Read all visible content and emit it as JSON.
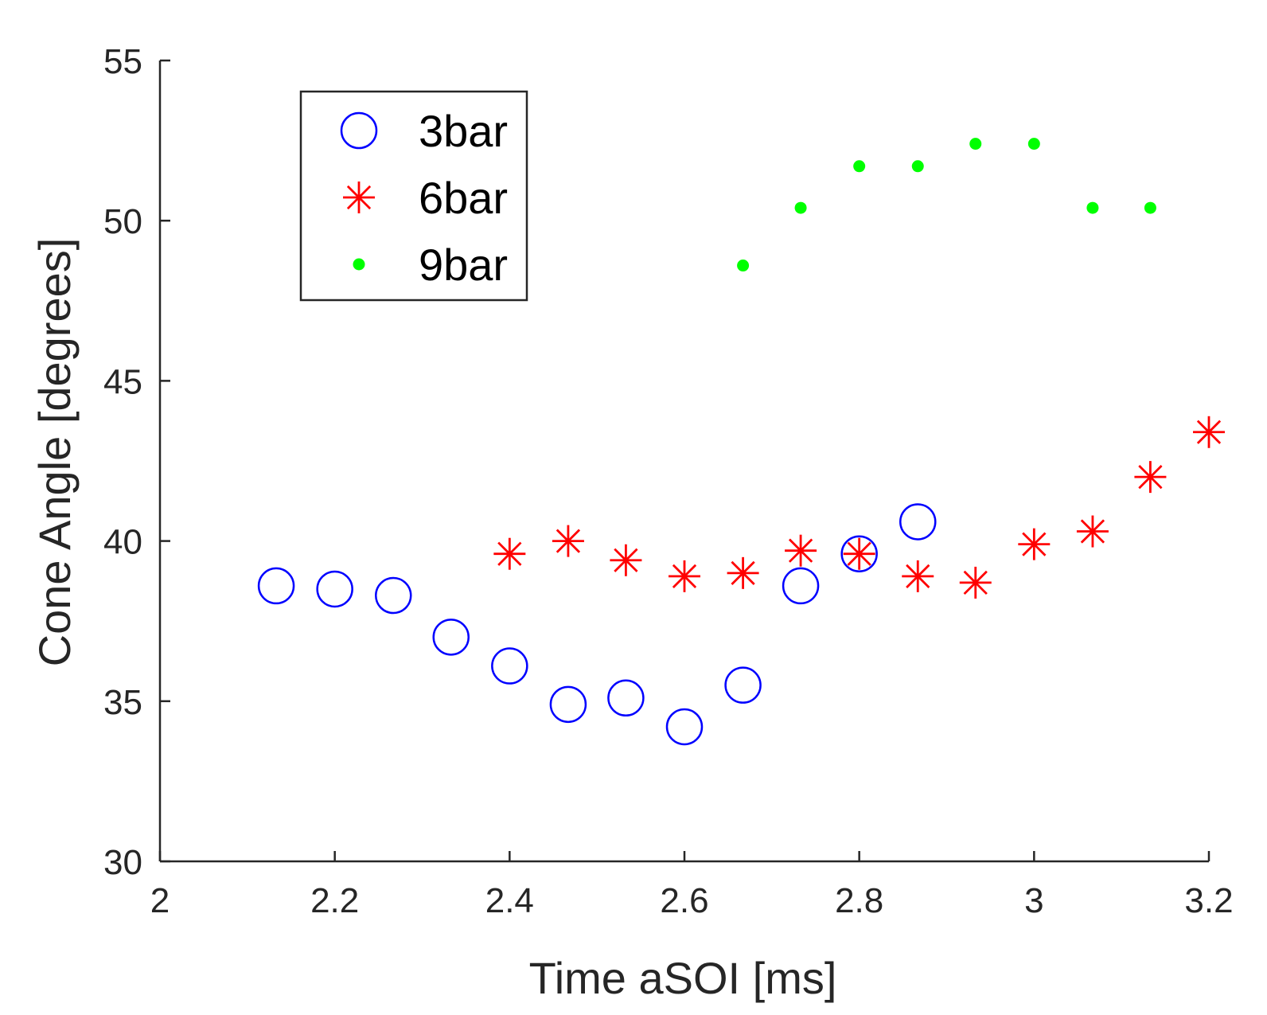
{
  "chart_data": {
    "type": "scatter",
    "title": "",
    "xlabel": "Time aSOI [ms]",
    "ylabel": "Cone Angle [degrees]",
    "xlim": [
      2,
      3.2
    ],
    "ylim": [
      30,
      55
    ],
    "xticks": [
      2,
      2.2,
      2.4,
      2.6,
      2.8,
      3,
      3.2
    ],
    "xtick_labels": [
      "2",
      "2.2",
      "2.4",
      "2.6",
      "2.8",
      "3",
      "3.2"
    ],
    "yticks": [
      30,
      35,
      40,
      45,
      50,
      55
    ],
    "ytick_labels": [
      "30",
      "35",
      "40",
      "45",
      "50",
      "55"
    ],
    "grid": false,
    "legend_position": "top-left",
    "series": [
      {
        "name": "3bar",
        "marker": "circle",
        "color": "#0000ff",
        "x": [
          2.133,
          2.2,
          2.267,
          2.333,
          2.4,
          2.467,
          2.533,
          2.6,
          2.667,
          2.733,
          2.8,
          2.867
        ],
        "y": [
          38.6,
          38.5,
          38.3,
          37.0,
          36.1,
          34.9,
          35.1,
          34.2,
          35.5,
          38.6,
          39.6,
          40.6
        ]
      },
      {
        "name": "6bar",
        "marker": "asterisk",
        "color": "#ff0000",
        "x": [
          2.4,
          2.467,
          2.533,
          2.6,
          2.667,
          2.733,
          2.8,
          2.867,
          2.933,
          3.0,
          3.067,
          3.133,
          3.2
        ],
        "y": [
          39.6,
          40.0,
          39.4,
          38.9,
          39.0,
          39.7,
          39.6,
          38.9,
          38.7,
          39.9,
          40.3,
          42.0,
          43.4
        ]
      },
      {
        "name": "9bar",
        "marker": "dot",
        "color": "#00ff00",
        "x": [
          2.667,
          2.733,
          2.8,
          2.867,
          2.933,
          3.0,
          3.067,
          3.133
        ],
        "y": [
          48.6,
          50.4,
          51.7,
          51.7,
          52.4,
          52.4,
          50.4,
          50.4
        ]
      }
    ]
  }
}
